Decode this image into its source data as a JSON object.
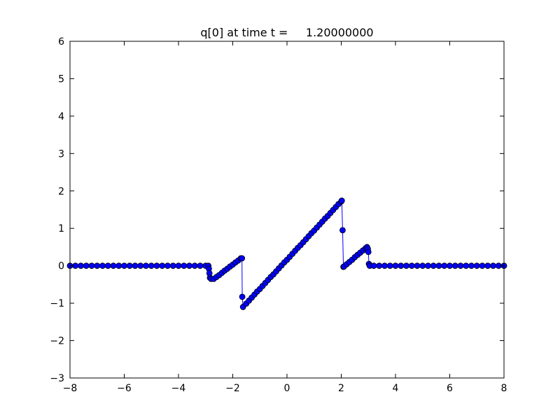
{
  "chart_data": {
    "type": "line",
    "title": "q[0] at time t =     1.20000000",
    "xlabel": "",
    "ylabel": "",
    "xlim": [
      -8,
      8
    ],
    "ylim": [
      -3,
      6
    ],
    "xticks": [
      -8,
      -6,
      -4,
      -2,
      0,
      2,
      4,
      6,
      8
    ],
    "yticks": [
      -3,
      -2,
      -1,
      0,
      1,
      2,
      3,
      4,
      5,
      6
    ],
    "grid": false,
    "legend": "none",
    "colors": {
      "line": "#0000ff",
      "marker_face": "#0000ff",
      "marker_edge": "#000000"
    },
    "marker": "circle",
    "series": [
      {
        "x": [
          -8.0,
          -7.8,
          -7.6,
          -7.4,
          -7.2,
          -7.0,
          -6.8,
          -6.6,
          -6.4,
          -6.2,
          -6.0,
          -5.8,
          -5.6,
          -5.4,
          -5.2,
          -5.0,
          -4.8,
          -4.6,
          -4.4,
          -4.2,
          -4.0,
          -3.8,
          -3.6,
          -3.4,
          -3.2,
          -3.0,
          -2.9,
          -2.88,
          -2.86,
          -2.84,
          -2.8,
          -2.7,
          -2.6,
          -2.5,
          -2.4,
          -2.3,
          -2.2,
          -2.1,
          -2.0,
          -1.9,
          -1.8,
          -1.7,
          -1.66,
          -1.65,
          -1.62,
          -1.5,
          -1.4,
          -1.3,
          -1.2,
          -1.1,
          -1.0,
          -0.9,
          -0.8,
          -0.7,
          -0.6,
          -0.5,
          -0.4,
          -0.3,
          -0.2,
          -0.1,
          0.0,
          0.1,
          0.2,
          0.3,
          0.4,
          0.5,
          0.6,
          0.7,
          0.8,
          0.9,
          1.0,
          1.1,
          1.2,
          1.3,
          1.4,
          1.5,
          1.6,
          1.7,
          1.8,
          1.9,
          2.0,
          2.02,
          2.05,
          2.08,
          2.1,
          2.2,
          2.3,
          2.4,
          2.5,
          2.6,
          2.7,
          2.8,
          2.9,
          2.95,
          2.98,
          3.0,
          3.02,
          3.05,
          3.2,
          3.4,
          3.6,
          3.8,
          4.0,
          4.2,
          4.4,
          4.6,
          4.8,
          5.0,
          5.2,
          5.4,
          5.6,
          5.8,
          6.0,
          6.2,
          6.4,
          6.6,
          6.8,
          7.0,
          7.2,
          7.4,
          7.6,
          7.8,
          8.0
        ],
        "y": [
          0,
          0,
          0,
          0,
          0,
          0,
          0,
          0,
          0,
          0,
          0,
          0,
          0,
          0,
          0,
          0,
          0,
          0,
          0,
          0,
          0,
          0,
          0,
          0,
          0,
          0,
          0,
          -0.08,
          -0.2,
          -0.32,
          -0.35,
          -0.35,
          -0.3,
          -0.25,
          -0.19,
          -0.13,
          -0.08,
          -0.02,
          0.03,
          0.09,
          0.14,
          0.2,
          0.2,
          -0.83,
          -1.1,
          -1.01,
          -0.93,
          -0.85,
          -0.77,
          -0.69,
          -0.62,
          -0.54,
          -0.46,
          -0.38,
          -0.3,
          -0.23,
          -0.15,
          -0.07,
          0.01,
          0.09,
          0.16,
          0.24,
          0.32,
          0.4,
          0.48,
          0.55,
          0.63,
          0.71,
          0.79,
          0.87,
          0.94,
          1.02,
          1.1,
          1.18,
          1.26,
          1.33,
          1.41,
          1.49,
          1.57,
          1.65,
          1.72,
          1.74,
          0.95,
          -0.03,
          -0.02,
          0.04,
          0.1,
          0.16,
          0.23,
          0.29,
          0.35,
          0.41,
          0.47,
          0.5,
          0.45,
          0.37,
          0.05,
          0,
          0,
          0,
          0,
          0,
          0,
          0,
          0,
          0,
          0,
          0,
          0,
          0,
          0,
          0,
          0,
          0,
          0,
          0,
          0,
          0,
          0,
          0,
          0,
          0,
          0
        ]
      }
    ]
  }
}
